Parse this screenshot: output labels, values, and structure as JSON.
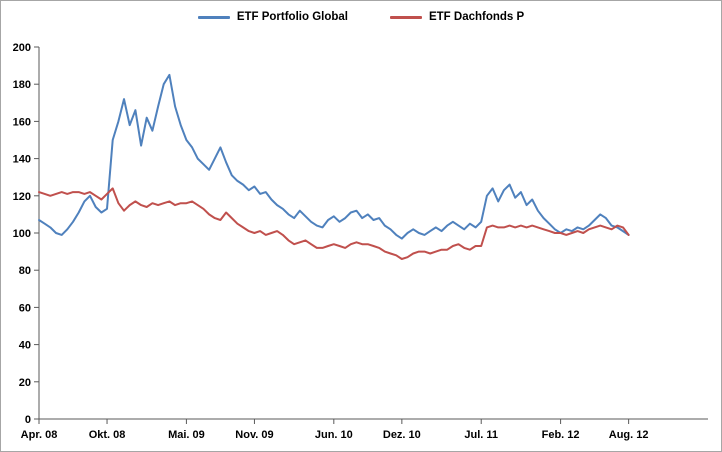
{
  "chart_data": {
    "type": "line",
    "title": "",
    "legend_position": "top",
    "grid": false,
    "ylim": [
      0,
      200
    ],
    "yticks": [
      0,
      20,
      40,
      60,
      80,
      100,
      120,
      140,
      160,
      180,
      200
    ],
    "xlim_months": [
      0,
      59
    ],
    "x_ticks": [
      {
        "label": "Apr. 08",
        "month": 0
      },
      {
        "label": "Okt. 08",
        "month": 6
      },
      {
        "label": "Mai. 09",
        "month": 13
      },
      {
        "label": "Nov. 09",
        "month": 19
      },
      {
        "label": "Jun. 10",
        "month": 26
      },
      {
        "label": "Dez. 10",
        "month": 32
      },
      {
        "label": "Jul. 11",
        "month": 39
      },
      {
        "label": "Feb. 12",
        "month": 46
      },
      {
        "label": "Aug. 12",
        "month": 52
      }
    ],
    "axis_color": "#595959",
    "series": [
      {
        "name": "ETF Portfolio Global",
        "color": "#4F81BD",
        "x_start_month": 0,
        "x_step_months": 0.5,
        "values": [
          107,
          105,
          103,
          100,
          99,
          102,
          106,
          111,
          117,
          120,
          114,
          111,
          113,
          150,
          160,
          172,
          158,
          166,
          147,
          162,
          155,
          168,
          180,
          185,
          168,
          158,
          150,
          146,
          140,
          137,
          134,
          140,
          146,
          138,
          131,
          128,
          126,
          123,
          125,
          121,
          122,
          118,
          115,
          113,
          110,
          108,
          112,
          109,
          106,
          104,
          103,
          107,
          109,
          106,
          108,
          111,
          112,
          108,
          110,
          107,
          108,
          104,
          102,
          99,
          97,
          100,
          102,
          100,
          99,
          101,
          103,
          101,
          104,
          106,
          104,
          102,
          105,
          103,
          106,
          120,
          124,
          117,
          123,
          126,
          119,
          122,
          115,
          118,
          112,
          108,
          105,
          102,
          100,
          102,
          101,
          103,
          102,
          104,
          107,
          110,
          108,
          104,
          103,
          101,
          99
        ]
      },
      {
        "name": "ETF Dachfonds P",
        "color": "#C0504D",
        "x_start_month": 0,
        "x_step_months": 0.5,
        "values": [
          122,
          121,
          120,
          121,
          122,
          121,
          122,
          122,
          121,
          122,
          120,
          118,
          121,
          124,
          116,
          112,
          115,
          117,
          115,
          114,
          116,
          115,
          116,
          117,
          115,
          116,
          116,
          117,
          115,
          113,
          110,
          108,
          107,
          111,
          108,
          105,
          103,
          101,
          100,
          101,
          99,
          100,
          101,
          99,
          96,
          94,
          95,
          96,
          94,
          92,
          92,
          93,
          94,
          93,
          92,
          94,
          95,
          94,
          94,
          93,
          92,
          90,
          89,
          88,
          86,
          87,
          89,
          90,
          90,
          89,
          90,
          91,
          91,
          93,
          94,
          92,
          91,
          93,
          93,
          103,
          104,
          103,
          103,
          104,
          103,
          104,
          103,
          104,
          103,
          102,
          101,
          100,
          100,
          99,
          100,
          101,
          100,
          102,
          103,
          104,
          103,
          102,
          104,
          103,
          99
        ]
      }
    ]
  }
}
